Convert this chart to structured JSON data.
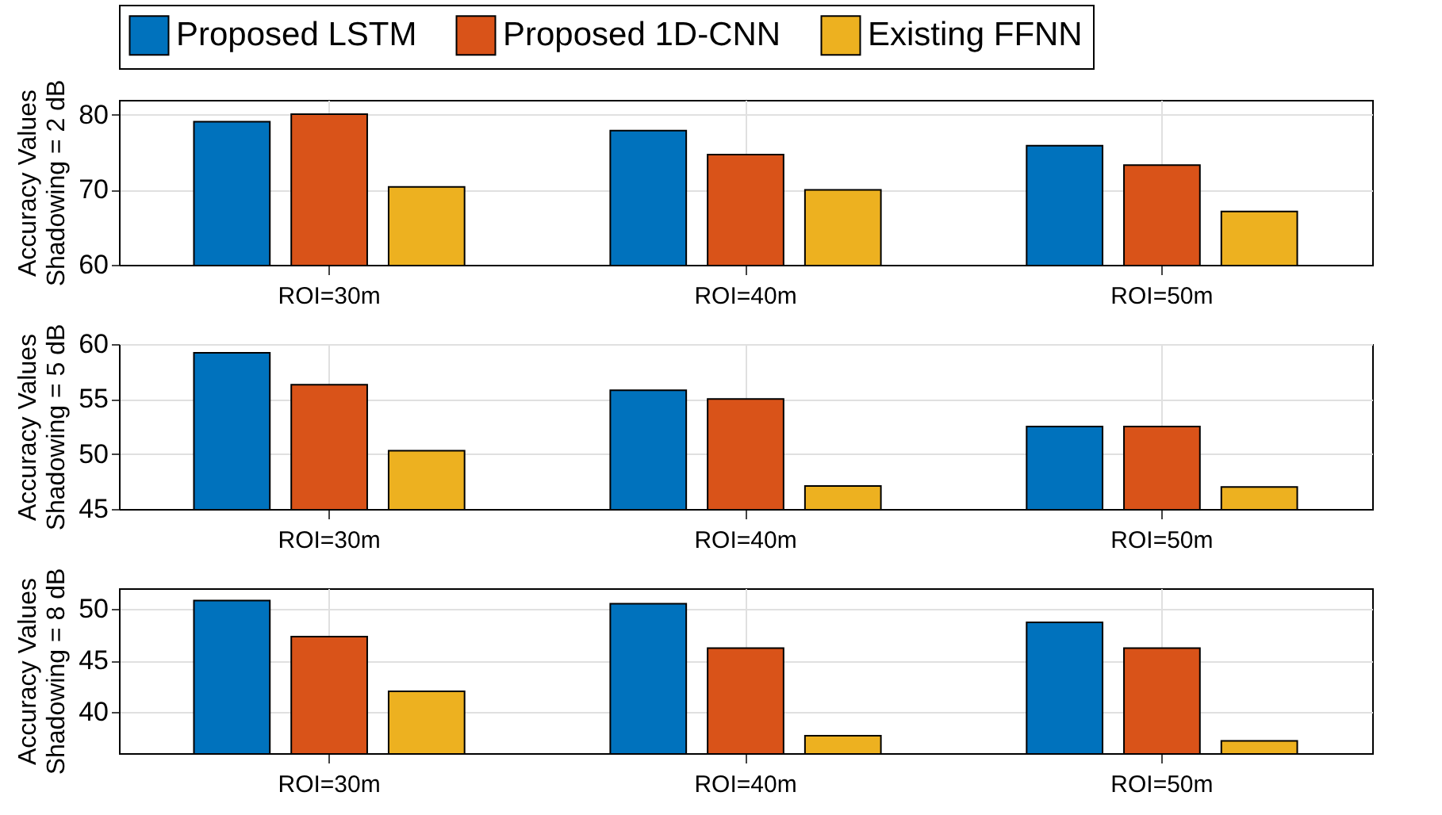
{
  "chart_data": [
    {
      "type": "bar",
      "ylabel": "Accuracy Values\nShadowing = 2 dB",
      "categories": [
        "ROI=30m",
        "ROI=40m",
        "ROI=50m"
      ],
      "ylim": [
        60,
        82
      ],
      "yticks": [
        60,
        70,
        80
      ],
      "grid": true,
      "legend": "top",
      "series": [
        {
          "name": "Proposed LSTM",
          "color": "#0072bd",
          "values": [
            79.1,
            77.9,
            75.9
          ]
        },
        {
          "name": "Proposed 1D-CNN",
          "color": "#d95319",
          "values": [
            80.1,
            74.7,
            73.3
          ]
        },
        {
          "name": "Existing FFNN",
          "color": "#edb120",
          "values": [
            70.4,
            70.0,
            67.1
          ]
        }
      ]
    },
    {
      "type": "bar",
      "ylabel": "Accuracy Values\nShadowing = 5 dB",
      "categories": [
        "ROI=30m",
        "ROI=40m",
        "ROI=50m"
      ],
      "ylim": [
        45,
        60
      ],
      "yticks": [
        45,
        50,
        55,
        60
      ],
      "grid": true,
      "legend": "top",
      "series": [
        {
          "name": "Proposed LSTM",
          "color": "#0072bd",
          "values": [
            59.2,
            55.8,
            52.5
          ]
        },
        {
          "name": "Proposed 1D-CNN",
          "color": "#d95319",
          "values": [
            56.3,
            55.0,
            52.5
          ]
        },
        {
          "name": "Existing FFNN",
          "color": "#edb120",
          "values": [
            50.3,
            47.1,
            47.0
          ]
        }
      ]
    },
    {
      "type": "bar",
      "ylabel": "Accuracy Values\nShadowing = 8 dB",
      "categories": [
        "ROI=30m",
        "ROI=40m",
        "ROI=50m"
      ],
      "ylim": [
        36,
        52
      ],
      "yticks": [
        40,
        45,
        50
      ],
      "grid": true,
      "legend": "top",
      "series": [
        {
          "name": "Proposed LSTM",
          "color": "#0072bd",
          "values": [
            50.8,
            50.5,
            48.7
          ]
        },
        {
          "name": "Proposed 1D-CNN",
          "color": "#d95319",
          "values": [
            47.3,
            46.2,
            46.2
          ]
        },
        {
          "name": "Existing FFNN",
          "color": "#edb120",
          "values": [
            42.0,
            37.7,
            37.2
          ]
        }
      ]
    }
  ]
}
